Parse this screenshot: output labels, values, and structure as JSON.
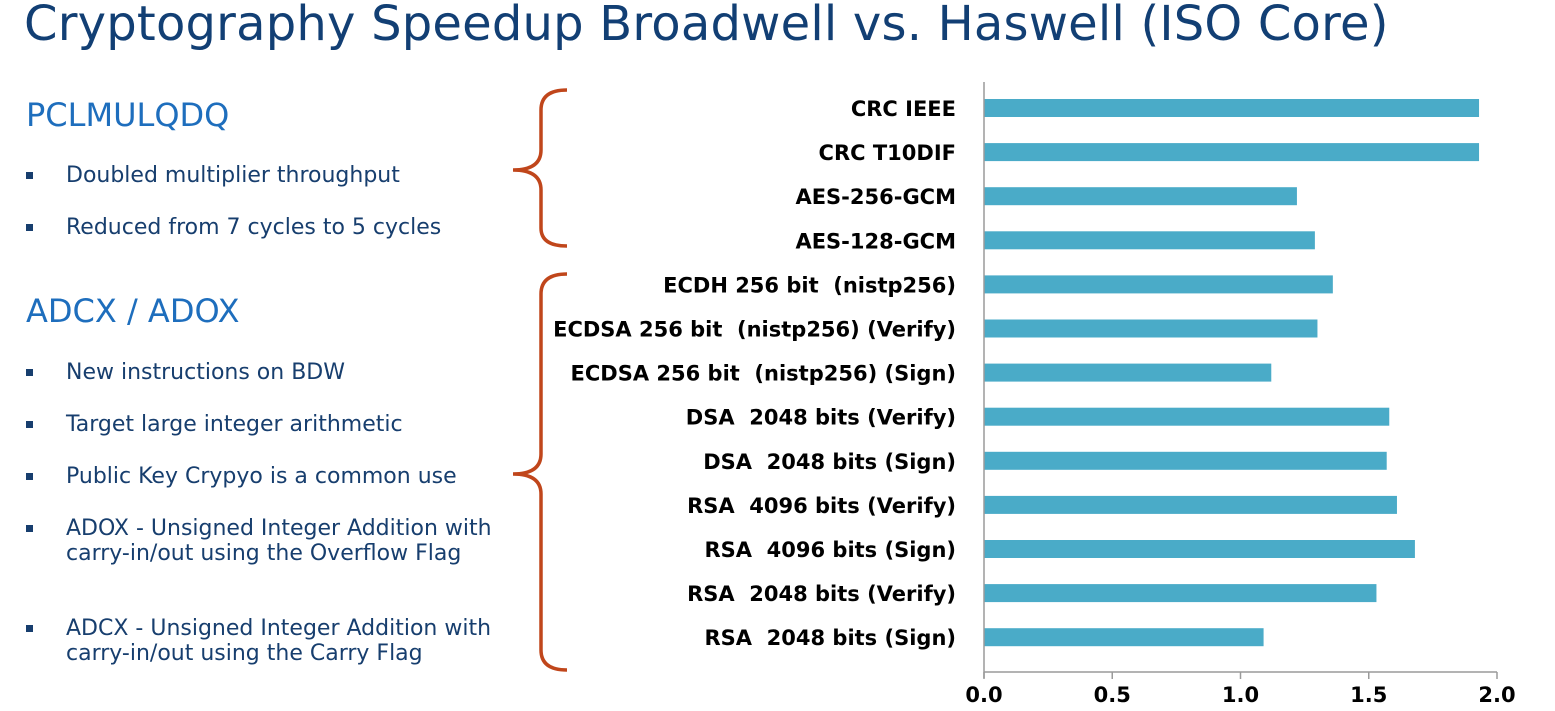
{
  "title": "Cryptography Speedup Broadwell vs. Haswell (ISO Core)",
  "colors": {
    "title": "#123f74",
    "heading": "#1e6ebd",
    "bar": "#4aabc8",
    "bracket": "#c0461b",
    "text": "#173e6e"
  },
  "sections": [
    {
      "heading": "PCLMULQDQ",
      "bullets": [
        "Doubled multiplier throughput",
        "Reduced from 7 cycles to 5 cycles"
      ]
    },
    {
      "heading": "ADCX / ADOX",
      "bullets": [
        "New instructions on BDW",
        "Target large integer arithmetic",
        "Public Key Crypyo is a common use",
        "ADOX - Unsigned Integer Addition with carry-in/out using the Overflow Flag",
        "ADCX - Unsigned Integer Addition with carry-in/out using the Carry Flag"
      ]
    }
  ],
  "chart_data": {
    "type": "bar",
    "orientation": "horizontal",
    "title": "",
    "xlabel": "",
    "ylabel": "",
    "categories": [
      "CRC IEEE",
      "CRC T10DIF",
      "AES-256-GCM",
      "AES-128-GCM",
      "ECDH 256 bit  (nistp256)",
      "ECDSA 256 bit  (nistp256) (Verify)",
      "ECDSA 256 bit  (nistp256) (Sign)",
      "DSA  2048 bits (Verify)",
      "DSA  2048 bits (Sign)",
      "RSA  4096 bits (Verify)",
      "RSA  4096 bits (Sign)",
      "RSA  2048 bits (Verify)",
      "RSA  2048 bits (Sign)"
    ],
    "values": [
      1.93,
      1.93,
      1.22,
      1.29,
      1.36,
      1.3,
      1.12,
      1.58,
      1.57,
      1.61,
      1.68,
      1.53,
      1.09
    ],
    "xlim": [
      0,
      2.0
    ],
    "xticks": [
      "0.0",
      "0.5",
      "1.0",
      "1.5",
      "2.0"
    ],
    "grid": false,
    "legend": "none"
  }
}
